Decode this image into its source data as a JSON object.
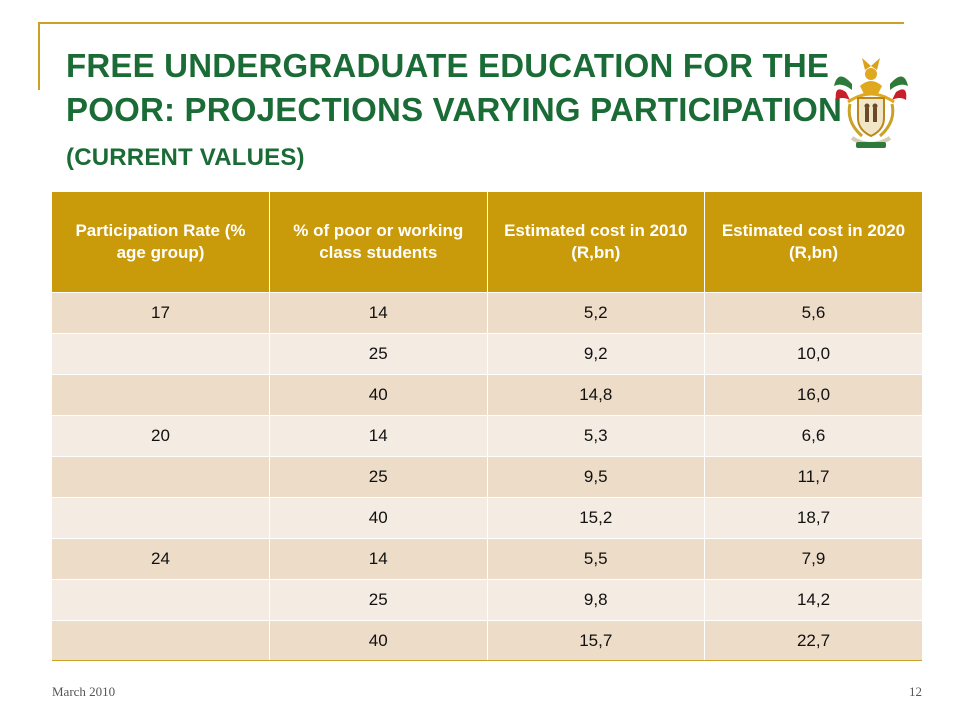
{
  "slide": {
    "title_main": "FREE UNDERGRADUATE EDUCATION FOR THE POOR:  PROJECTIONS VARYING PARTICIPATION ",
    "title_sub": "(CURRENT VALUES)",
    "footer_date": "March 2010",
    "page_number": "12"
  },
  "table": {
    "headers": [
      "Participation Rate (% age group)",
      "% of poor or working class students",
      "Estimated cost in 2010 (R,bn)",
      "Estimated cost in 2020 (R,bn)"
    ],
    "rows": [
      [
        "17",
        "14",
        "5,2",
        "5,6"
      ],
      [
        "",
        "25",
        "9,2",
        "10,0"
      ],
      [
        "",
        "40",
        "14,8",
        "16,0"
      ],
      [
        "20",
        "14",
        "5,3",
        "6,6"
      ],
      [
        "",
        "25",
        "9,5",
        "11,7"
      ],
      [
        "",
        "40",
        "15,2",
        "18,7"
      ],
      [
        "24",
        "14",
        "5,5",
        "7,9"
      ],
      [
        "",
        "25",
        "9,8",
        "14,2"
      ],
      [
        "",
        "40",
        "15,7",
        "22,7"
      ]
    ]
  },
  "colors": {
    "title": "#1a6b35",
    "header_bg": "#c99a0a",
    "row_odd": "#eddcc8",
    "row_even": "#f4ebe3",
    "accent_rule": "#c9a227"
  },
  "icons": {
    "emblem": "coat-of-arms-icon"
  }
}
